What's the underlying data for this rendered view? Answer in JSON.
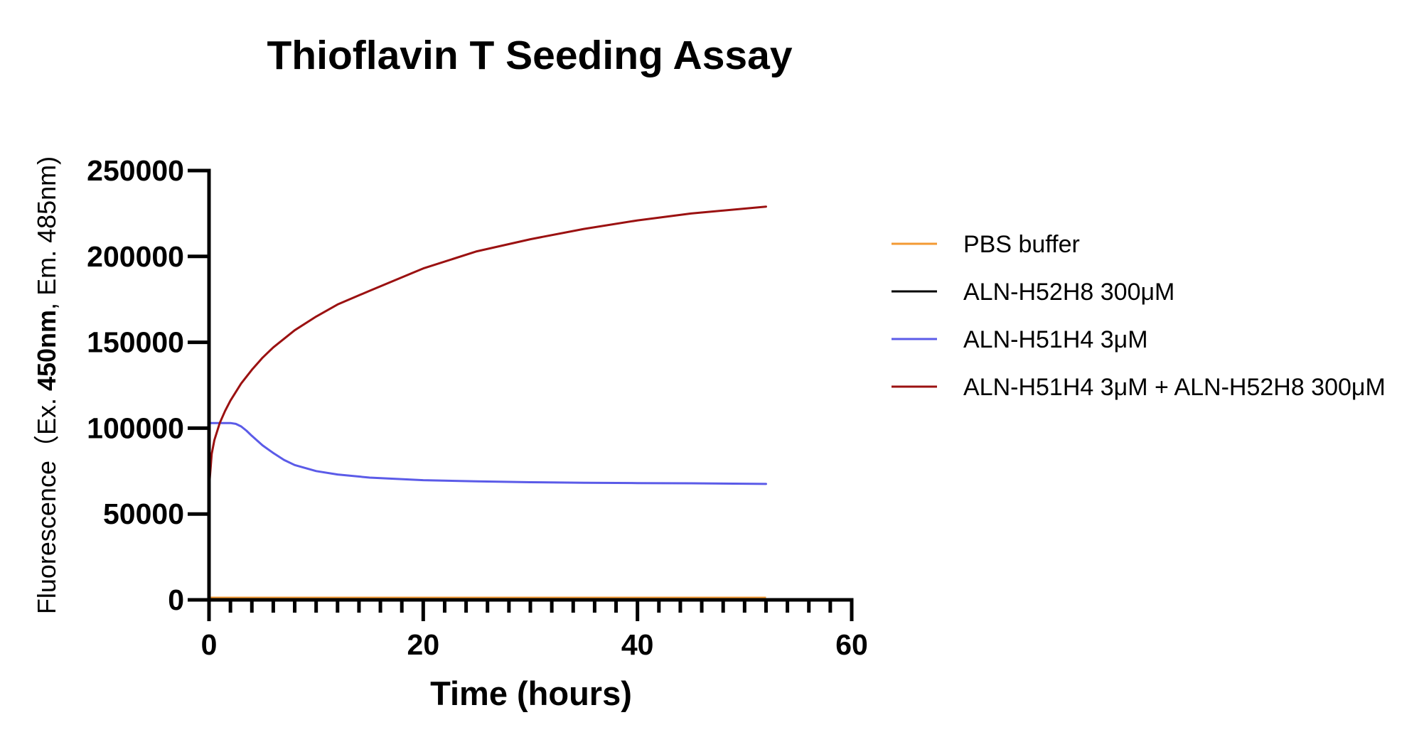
{
  "chart_data": {
    "type": "line",
    "title": "Thioflavin T Seeding Assay",
    "xlabel": "Time (hours)",
    "ylabel": {
      "prefix": "Fluorescence（Ex. ",
      "bold": "450nm",
      "suffix": ", Em. 485nm)"
    },
    "xlim": [
      0,
      60
    ],
    "ylim": [
      0,
      250000
    ],
    "x_ticks": [
      0,
      20,
      40,
      60
    ],
    "x_tick_labels": [
      "0",
      "20",
      "40",
      "60"
    ],
    "x_minor_step": 2,
    "y_ticks": [
      0,
      50000,
      100000,
      150000,
      200000,
      250000
    ],
    "y_tick_labels": [
      "0",
      "50000",
      "100000",
      "150000",
      "200000",
      "250000"
    ],
    "grid": false,
    "legend_position": "right",
    "series": [
      {
        "name": "PBS buffer",
        "color": "#f39a33",
        "x": [
          0,
          52
        ],
        "y": [
          0,
          0
        ]
      },
      {
        "name": "ALN-H52H8 300μM",
        "color": "#000000",
        "x": [
          0,
          52
        ],
        "y": [
          0,
          0
        ]
      },
      {
        "name": "ALN-H51H4 3μM",
        "color": "#5b5be8",
        "x": [
          0,
          1,
          2,
          2.5,
          3,
          3.5,
          4,
          5,
          6,
          7,
          8,
          10,
          12,
          15,
          20,
          25,
          30,
          35,
          40,
          45,
          52
        ],
        "y": [
          103000,
          103000,
          103000,
          102500,
          101000,
          98500,
          95500,
          90000,
          85500,
          81500,
          78500,
          75000,
          73000,
          71200,
          69700,
          69000,
          68500,
          68200,
          68000,
          67900,
          67500
        ]
      },
      {
        "name": "ALN-H51H4 3μM + ALN-H52H8 300μM",
        "color": "#9b1111",
        "x": [
          0,
          0.25,
          0.5,
          1,
          1.5,
          2,
          3,
          4,
          5,
          6,
          8,
          10,
          12,
          15,
          20,
          25,
          30,
          35,
          40,
          45,
          52
        ],
        "y": [
          65000,
          85000,
          93000,
          103000,
          110000,
          116000,
          126000,
          134000,
          141000,
          147000,
          157000,
          165000,
          172000,
          180000,
          193000,
          203000,
          210000,
          216000,
          221000,
          225000,
          229000
        ]
      }
    ]
  }
}
